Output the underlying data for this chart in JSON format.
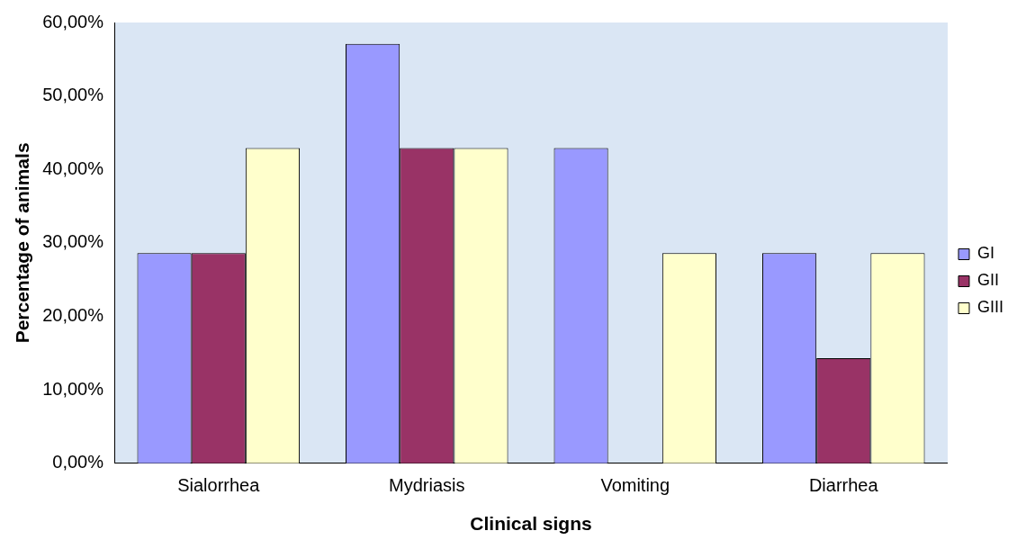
{
  "chart_data": {
    "type": "bar",
    "xlabel": "Clinical signs",
    "ylabel": "Percentage of animals",
    "categories": [
      "Sialorrhea",
      "Mydriasis",
      "Vomiting",
      "Diarrhea"
    ],
    "series": [
      {
        "name": "GI",
        "color": "#9999ff",
        "values": [
          28.6,
          57.1,
          42.9,
          28.6
        ]
      },
      {
        "name": "GII",
        "color": "#993366",
        "values": [
          28.6,
          42.9,
          0,
          14.3
        ]
      },
      {
        "name": "GIII",
        "color": "#ffffcc",
        "values": [
          42.9,
          42.9,
          28.6,
          28.6
        ]
      }
    ],
    "ylim": [
      0,
      60
    ],
    "yticks": [
      {
        "value": 0,
        "label": "0,00%"
      },
      {
        "value": 10,
        "label": "10,00%"
      },
      {
        "value": 20,
        "label": "20,00%"
      },
      {
        "value": 30,
        "label": "30,00%"
      },
      {
        "value": 40,
        "label": "40,00%"
      },
      {
        "value": 50,
        "label": "50,00%"
      },
      {
        "value": 60,
        "label": "60,00%"
      }
    ],
    "grid": false,
    "legend": "right"
  }
}
